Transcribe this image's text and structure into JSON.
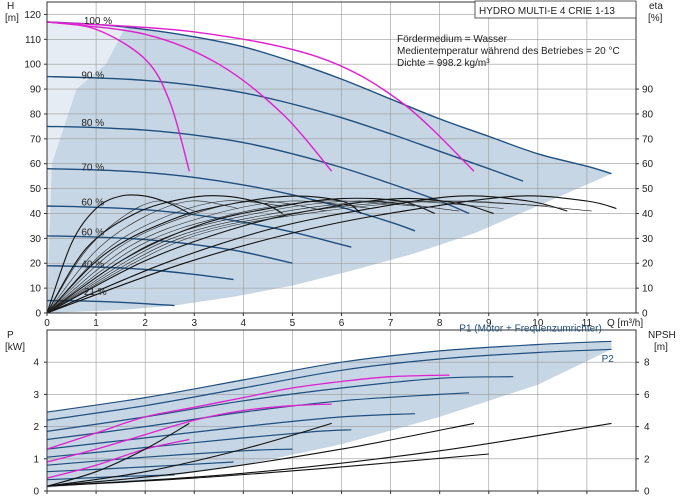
{
  "chart_data": [
    {
      "type": "line",
      "title": "HYDRO MULTI-E 4 CRIE 1-13",
      "notes": [
        "Fördermedium = Wasser",
        "Medientemperatur während des Betriebes = 20 °C",
        "Dichte = 998.2 kg/m³"
      ],
      "ylabel_left": [
        "H",
        "[m]"
      ],
      "ylabel_right": [
        "eta",
        "[%]"
      ],
      "xlabel": "Q [m³/h]",
      "xlim": [
        0,
        12
      ],
      "ylim": [
        0,
        125
      ],
      "y2lim": [
        0,
        125
      ],
      "x_ticks": [
        0,
        1,
        2,
        3,
        4,
        5,
        6,
        7,
        8,
        9,
        10,
        11
      ],
      "y_ticks": [
        0,
        10,
        20,
        30,
        40,
        50,
        60,
        70,
        80,
        90,
        100,
        110,
        120
      ],
      "y2_ticks": [
        0,
        10,
        20,
        30,
        40,
        50,
        60,
        70,
        80,
        90
      ],
      "grid": true,
      "colors": {
        "qh_curve": "#1f4f7f",
        "system_curve": "#e020d0",
        "efficiency_curve": "#111111",
        "envelope": "#bccfdf"
      },
      "speed_labels": [
        {
          "text": "100 %",
          "q": 0.75,
          "h": 117
        },
        {
          "text": "90 %",
          "q": 0.7,
          "h": 95
        },
        {
          "text": "80 %",
          "q": 0.7,
          "h": 76
        },
        {
          "text": "70 %",
          "q": 0.7,
          "h": 58
        },
        {
          "text": "60 %",
          "q": 0.7,
          "h": 44
        },
        {
          "text": "60 %",
          "q": 0.7,
          "h": 32
        },
        {
          "text": "40 %",
          "q": 0.7,
          "h": 19
        },
        {
          "text": "21 %",
          "q": 0.75,
          "h": 8
        }
      ],
      "envelope": {
        "upper": [
          [
            0,
            117
          ],
          [
            1,
            116
          ],
          [
            2,
            114
          ],
          [
            3,
            111
          ],
          [
            4,
            107
          ],
          [
            5,
            101
          ],
          [
            6,
            94
          ],
          [
            7,
            86
          ],
          [
            8,
            78
          ],
          [
            9,
            71
          ],
          [
            10,
            64
          ],
          [
            11,
            59
          ],
          [
            11.5,
            56
          ]
        ],
        "lower": [
          [
            11.5,
            56
          ],
          [
            10,
            43
          ],
          [
            8.7,
            32
          ],
          [
            7.5,
            24
          ],
          [
            6.2,
            17
          ],
          [
            5,
            11
          ],
          [
            3.8,
            6.5
          ],
          [
            2.6,
            3
          ],
          [
            1.5,
            1.2
          ],
          [
            0,
            0
          ]
        ]
      },
      "qh_curves": [
        {
          "speed": "100 %",
          "points": [
            [
              0,
              117
            ],
            [
              1,
              116
            ],
            [
              2,
              114
            ],
            [
              3,
              111
            ],
            [
              4,
              107
            ],
            [
              5,
              101
            ],
            [
              6,
              94
            ],
            [
              7,
              86
            ],
            [
              8,
              78
            ],
            [
              9,
              71
            ],
            [
              10,
              64
            ],
            [
              11,
              59
            ],
            [
              11.5,
              56
            ]
          ]
        },
        {
          "speed": "90 %",
          "points": [
            [
              0,
              95
            ],
            [
              1,
              94.5
            ],
            [
              2,
              93.5
            ],
            [
              3,
              91.5
            ],
            [
              4,
              88.5
            ],
            [
              5,
              84
            ],
            [
              6,
              78.5
            ],
            [
              7,
              72
            ],
            [
              8,
              65
            ],
            [
              9,
              58
            ],
            [
              9.7,
              53
            ]
          ]
        },
        {
          "speed": "80 %",
          "points": [
            [
              0,
              75
            ],
            [
              1,
              74.5
            ],
            [
              2,
              73.5
            ],
            [
              3,
              71.5
            ],
            [
              4,
              68.5
            ],
            [
              5,
              64
            ],
            [
              6,
              58.5
            ],
            [
              7,
              52
            ],
            [
              8,
              45
            ],
            [
              8.6,
              40
            ]
          ]
        },
        {
          "speed": "70 %",
          "points": [
            [
              0,
              58
            ],
            [
              1,
              57.5
            ],
            [
              2,
              56.5
            ],
            [
              3,
              54.5
            ],
            [
              4,
              51.5
            ],
            [
              5,
              47.5
            ],
            [
              6,
              42.5
            ],
            [
              7,
              36.5
            ],
            [
              7.5,
              33
            ]
          ]
        },
        {
          "speed": "60 %",
          "points": [
            [
              0,
              43
            ],
            [
              1,
              42.5
            ],
            [
              2,
              41.5
            ],
            [
              3,
              39.5
            ],
            [
              4,
              36.5
            ],
            [
              5,
              32.5
            ],
            [
              6,
              27.5
            ],
            [
              6.2,
              26.5
            ]
          ]
        },
        {
          "speed": "60 %",
          "points": [
            [
              0,
              31
            ],
            [
              1,
              30.5
            ],
            [
              2,
              29.5
            ],
            [
              3,
              27.5
            ],
            [
              4,
              24.5
            ],
            [
              5,
              20
            ]
          ]
        },
        {
          "speed": "40 %",
          "points": [
            [
              0,
              19
            ],
            [
              1,
              18.5
            ],
            [
              2,
              17.5
            ],
            [
              3,
              15.5
            ],
            [
              3.8,
              13.5
            ]
          ]
        },
        {
          "speed": "21 %",
          "points": [
            [
              0,
              5
            ],
            [
              0.8,
              4.8
            ],
            [
              1.6,
              4.2
            ],
            [
              2.6,
              3
            ]
          ]
        }
      ],
      "system_curves": [
        [
          [
            0,
            117
          ],
          [
            1,
            114
          ],
          [
            2,
            102
          ],
          [
            2.5,
            85
          ],
          [
            2.9,
            57
          ]
        ],
        [
          [
            0,
            117
          ],
          [
            2,
            112
          ],
          [
            3.5,
            100
          ],
          [
            4.8,
            80
          ],
          [
            5.8,
            57
          ]
        ],
        [
          [
            0,
            117
          ],
          [
            3,
            113
          ],
          [
            5.5,
            103
          ],
          [
            7.2,
            85
          ],
          [
            8.7,
            57
          ]
        ]
      ],
      "efficiency_curves": [
        [
          [
            0,
            0
          ],
          [
            0.5,
            28
          ],
          [
            1,
            42
          ],
          [
            1.5,
            47
          ],
          [
            2,
            47
          ],
          [
            2.5,
            44
          ],
          [
            2.9,
            40
          ]
        ],
        [
          [
            0,
            0
          ],
          [
            0.8,
            26
          ],
          [
            1.8,
            40
          ],
          [
            2.8,
            46
          ],
          [
            3.6,
            47
          ],
          [
            4.4,
            44
          ],
          [
            4.8,
            40
          ]
        ],
        [
          [
            0,
            0
          ],
          [
            1.2,
            24
          ],
          [
            2.6,
            38
          ],
          [
            3.8,
            44
          ],
          [
            5,
            47
          ],
          [
            6,
            45
          ],
          [
            6.4,
            40
          ]
        ],
        [
          [
            0,
            0
          ],
          [
            1.6,
            22
          ],
          [
            3.2,
            36
          ],
          [
            4.8,
            43
          ],
          [
            6,
            46
          ],
          [
            7.2,
            45
          ],
          [
            7.9,
            40
          ]
        ],
        [
          [
            0,
            0
          ],
          [
            2,
            21
          ],
          [
            4,
            35
          ],
          [
            5.6,
            42
          ],
          [
            7.2,
            46
          ],
          [
            8.4,
            44
          ],
          [
            9.1,
            40
          ]
        ],
        [
          [
            0,
            0
          ],
          [
            2.4,
            20
          ],
          [
            4.6,
            34
          ],
          [
            6.6,
            42
          ],
          [
            8.4,
            47
          ],
          [
            9.8,
            45
          ],
          [
            10.6,
            41
          ]
        ],
        [
          [
            0,
            0
          ],
          [
            2.8,
            20
          ],
          [
            5.4,
            34
          ],
          [
            7.6,
            42
          ],
          [
            9.6,
            47
          ],
          [
            11,
            45
          ],
          [
            11.6,
            42
          ]
        ]
      ]
    },
    {
      "type": "line",
      "ylabel_left": [
        "P",
        "[kW]"
      ],
      "ylabel_right": [
        "NPSH",
        "[m]"
      ],
      "xlim": [
        0,
        12
      ],
      "ylim": [
        0,
        5
      ],
      "y2lim": [
        0,
        10
      ],
      "y_ticks": [
        0,
        1,
        2,
        3,
        4
      ],
      "y2_ticks": [
        0,
        2,
        4,
        6,
        8
      ],
      "grid": true,
      "series_labels": [
        {
          "text": "P1 (Motor + Frequenzumrichter)",
          "q": 8.4,
          "p": 4.95
        },
        {
          "text": "P2",
          "q": 11.3,
          "p": 4.0
        }
      ],
      "envelope": {
        "upper": [
          [
            0,
            2.45
          ],
          [
            2,
            2.9
          ],
          [
            4,
            3.45
          ],
          [
            6,
            4.0
          ],
          [
            8,
            4.35
          ],
          [
            10,
            4.55
          ],
          [
            11.5,
            4.65
          ]
        ],
        "lower": [
          [
            11.5,
            4.4
          ],
          [
            10,
            3.3
          ],
          [
            8,
            2.3
          ],
          [
            6,
            1.45
          ],
          [
            4,
            0.8
          ],
          [
            2,
            0.35
          ],
          [
            0,
            0.1
          ]
        ]
      },
      "power_curves": [
        [
          [
            0,
            2.45
          ],
          [
            2,
            2.9
          ],
          [
            4,
            3.45
          ],
          [
            6,
            4.0
          ],
          [
            8,
            4.35
          ],
          [
            10,
            4.55
          ],
          [
            11.5,
            4.65
          ]
        ],
        [
          [
            0,
            2.2
          ],
          [
            2,
            2.65
          ],
          [
            4,
            3.2
          ],
          [
            6,
            3.75
          ],
          [
            8,
            4.1
          ],
          [
            10,
            4.3
          ],
          [
            11.5,
            4.4
          ]
        ],
        [
          [
            0,
            1.85
          ],
          [
            2,
            2.3
          ],
          [
            4,
            2.8
          ],
          [
            6,
            3.2
          ],
          [
            8,
            3.5
          ],
          [
            9.5,
            3.55
          ]
        ],
        [
          [
            0,
            1.6
          ],
          [
            2,
            2.0
          ],
          [
            4,
            2.45
          ],
          [
            6,
            2.8
          ],
          [
            8,
            3.0
          ],
          [
            8.6,
            3.05
          ]
        ],
        [
          [
            0,
            1.3
          ],
          [
            2,
            1.65
          ],
          [
            4,
            2.0
          ],
          [
            6,
            2.3
          ],
          [
            7.5,
            2.4
          ]
        ],
        [
          [
            0,
            1.05
          ],
          [
            2,
            1.35
          ],
          [
            4,
            1.65
          ],
          [
            5.5,
            1.85
          ],
          [
            6.2,
            1.9
          ]
        ],
        [
          [
            0,
            0.8
          ],
          [
            2,
            1.05
          ],
          [
            4,
            1.25
          ],
          [
            5,
            1.3
          ]
        ],
        [
          [
            0,
            0.6
          ],
          [
            2,
            0.75
          ],
          [
            3.8,
            0.9
          ]
        ],
        [
          [
            0,
            0.35
          ],
          [
            1.5,
            0.45
          ],
          [
            2.6,
            0.5
          ]
        ]
      ],
      "power_system_curves": [
        [
          [
            0,
            1.3
          ],
          [
            1,
            1.8
          ],
          [
            2,
            2.3
          ],
          [
            3,
            2.6
          ],
          [
            4,
            2.9
          ],
          [
            5,
            3.2
          ],
          [
            6,
            3.4
          ],
          [
            7,
            3.55
          ],
          [
            8.2,
            3.6
          ]
        ],
        [
          [
            0,
            0.9
          ],
          [
            1,
            1.3
          ],
          [
            2,
            1.75
          ],
          [
            3,
            2.2
          ],
          [
            4,
            2.5
          ],
          [
            5,
            2.65
          ],
          [
            5.8,
            2.7
          ]
        ],
        [
          [
            0,
            0.4
          ],
          [
            1,
            0.8
          ],
          [
            2,
            1.3
          ],
          [
            2.9,
            1.6
          ]
        ]
      ],
      "npsh_curves": [
        [
          [
            0,
            0.3
          ],
          [
            1,
            1.2
          ],
          [
            2,
            2.6
          ],
          [
            2.9,
            4.2
          ]
        ],
        [
          [
            0,
            0.3
          ],
          [
            2,
            1.2
          ],
          [
            4,
            2.6
          ],
          [
            5.8,
            4.2
          ]
        ],
        [
          [
            0,
            0.3
          ],
          [
            3,
            1.2
          ],
          [
            6,
            2.6
          ],
          [
            8.7,
            4.2
          ]
        ],
        [
          [
            0,
            0.3
          ],
          [
            4,
            1.1
          ],
          [
            8,
            2.5
          ],
          [
            11.5,
            4.2
          ]
        ],
        [
          [
            0,
            0.3
          ],
          [
            3,
            0.8
          ],
          [
            6,
            1.5
          ],
          [
            9,
            2.3
          ]
        ]
      ]
    }
  ]
}
